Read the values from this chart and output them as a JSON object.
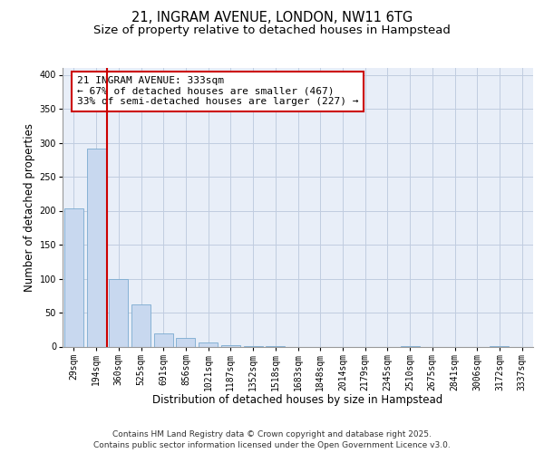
{
  "title_line1": "21, INGRAM AVENUE, LONDON, NW11 6TG",
  "title_line2": "Size of property relative to detached houses in Hampstead",
  "xlabel": "Distribution of detached houses by size in Hampstead",
  "ylabel": "Number of detached properties",
  "bar_labels": [
    "29sqm",
    "194sqm",
    "360sqm",
    "525sqm",
    "691sqm",
    "856sqm",
    "1021sqm",
    "1187sqm",
    "1352sqm",
    "1518sqm",
    "1683sqm",
    "1848sqm",
    "2014sqm",
    "2179sqm",
    "2345sqm",
    "2510sqm",
    "2675sqm",
    "2841sqm",
    "3006sqm",
    "3172sqm",
    "3337sqm"
  ],
  "bar_values": [
    204,
    292,
    100,
    62,
    20,
    13,
    6,
    2,
    1,
    1,
    0,
    0,
    0,
    0,
    0,
    1,
    0,
    0,
    0,
    1,
    0
  ],
  "bar_color": "#c8d8ef",
  "bar_edge_color": "#7aaad0",
  "vline_color": "#cc0000",
  "vline_label_title": "21 INGRAM AVENUE: 333sqm",
  "vline_label_line2": "← 67% of detached houses are smaller (467)",
  "vline_label_line3": "33% of semi-detached houses are larger (227) →",
  "annotation_box_color": "#cc0000",
  "ylim": [
    0,
    410
  ],
  "yticks": [
    0,
    50,
    100,
    150,
    200,
    250,
    300,
    350,
    400
  ],
  "background_color": "#e8eef8",
  "grid_color": "#c0cce0",
  "footer_line1": "Contains HM Land Registry data © Crown copyright and database right 2025.",
  "footer_line2": "Contains public sector information licensed under the Open Government Licence v3.0.",
  "title_fontsize": 10.5,
  "subtitle_fontsize": 9.5,
  "axis_label_fontsize": 8.5,
  "tick_fontsize": 7,
  "annotation_fontsize": 8,
  "footer_fontsize": 6.5
}
